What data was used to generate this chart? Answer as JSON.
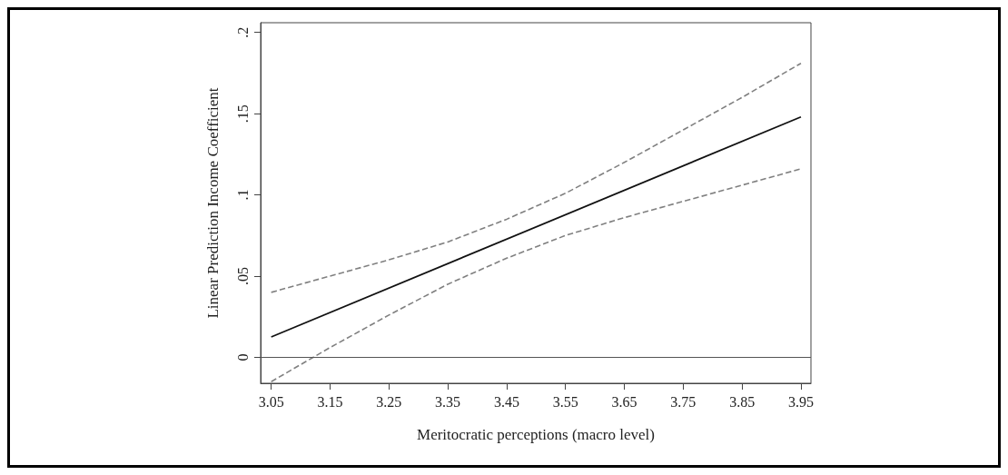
{
  "chart_data": {
    "type": "line",
    "xlabel": "Meritocratic perceptions (macro level)",
    "ylabel": "Linear Prediction Income Coefficient",
    "xlim": [
      3.032,
      3.967
    ],
    "xticks": [
      3.05,
      3.15,
      3.25,
      3.35,
      3.45,
      3.55,
      3.65,
      3.75,
      3.85,
      3.95
    ],
    "ylim": [
      -0.016,
      0.206
    ],
    "yticks": [
      {
        "value": 0,
        "label": "0"
      },
      {
        "value": 0.05,
        "label": ".05"
      },
      {
        "value": 0.1,
        "label": ".1"
      },
      {
        "value": 0.15,
        "label": ".15"
      },
      {
        "value": 0.2,
        "label": ".2"
      }
    ],
    "grid": false,
    "marker": "none",
    "ref_lines": [
      {
        "axis": "y",
        "value": 0,
        "color": "#555555",
        "line_style": "solid"
      }
    ],
    "series": [
      {
        "color": "#111111",
        "line_style": "solid",
        "x": [
          3.05,
          3.95
        ],
        "values": [
          0.0125,
          0.148
        ]
      },
      {
        "color": "#808080",
        "line_style": "dashed",
        "x": [
          3.05,
          3.15,
          3.25,
          3.35,
          3.45,
          3.55,
          3.65,
          3.75,
          3.85,
          3.95
        ],
        "values": [
          0.04,
          0.05,
          0.06,
          0.071,
          0.085,
          0.101,
          0.12,
          0.14,
          0.16,
          0.181
        ]
      },
      {
        "color": "#808080",
        "line_style": "dashed",
        "x": [
          3.05,
          3.15,
          3.25,
          3.35,
          3.45,
          3.55,
          3.65,
          3.75,
          3.85,
          3.95
        ],
        "values": [
          -0.015,
          0.006,
          0.026,
          0.045,
          0.061,
          0.075,
          0.086,
          0.096,
          0.106,
          0.116
        ]
      }
    ]
  }
}
